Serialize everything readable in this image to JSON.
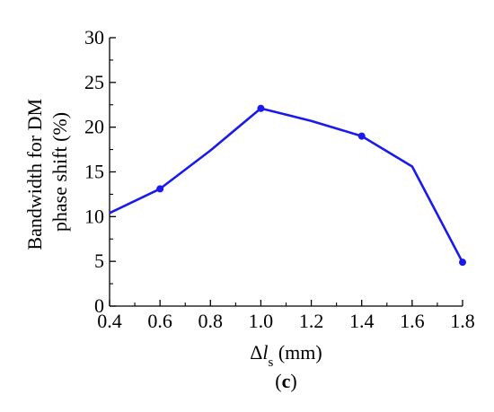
{
  "chart_data": {
    "type": "line",
    "title": "",
    "xlabel": {
      "symbol": "Δ",
      "variable": "l",
      "subscript": "s",
      "unit": " (mm)"
    },
    "ylabel": [
      "Bandwidth for DM",
      "phase shift (%)"
    ],
    "panel_label": {
      "open": "(",
      "letter": "c",
      "close": ")"
    },
    "xlim": [
      0.4,
      1.8
    ],
    "ylim": [
      0,
      30
    ],
    "x_ticks": [
      "0.4",
      "0.6",
      "0.8",
      "1.0",
      "1.2",
      "1.4",
      "1.6",
      "1.8"
    ],
    "y_ticks": [
      "0",
      "5",
      "10",
      "15",
      "20",
      "25",
      "30"
    ],
    "grid": false,
    "series": [
      {
        "color": "#1a1aee",
        "x": [
          0.4,
          0.6,
          0.8,
          1.0,
          1.2,
          1.4,
          1.6,
          1.8
        ],
        "y": [
          10.4,
          13.1,
          17.4,
          22.1,
          20.7,
          19.0,
          15.6,
          4.9
        ],
        "markers_at": [
          0.6,
          1.0,
          1.4,
          1.8
        ]
      }
    ]
  }
}
